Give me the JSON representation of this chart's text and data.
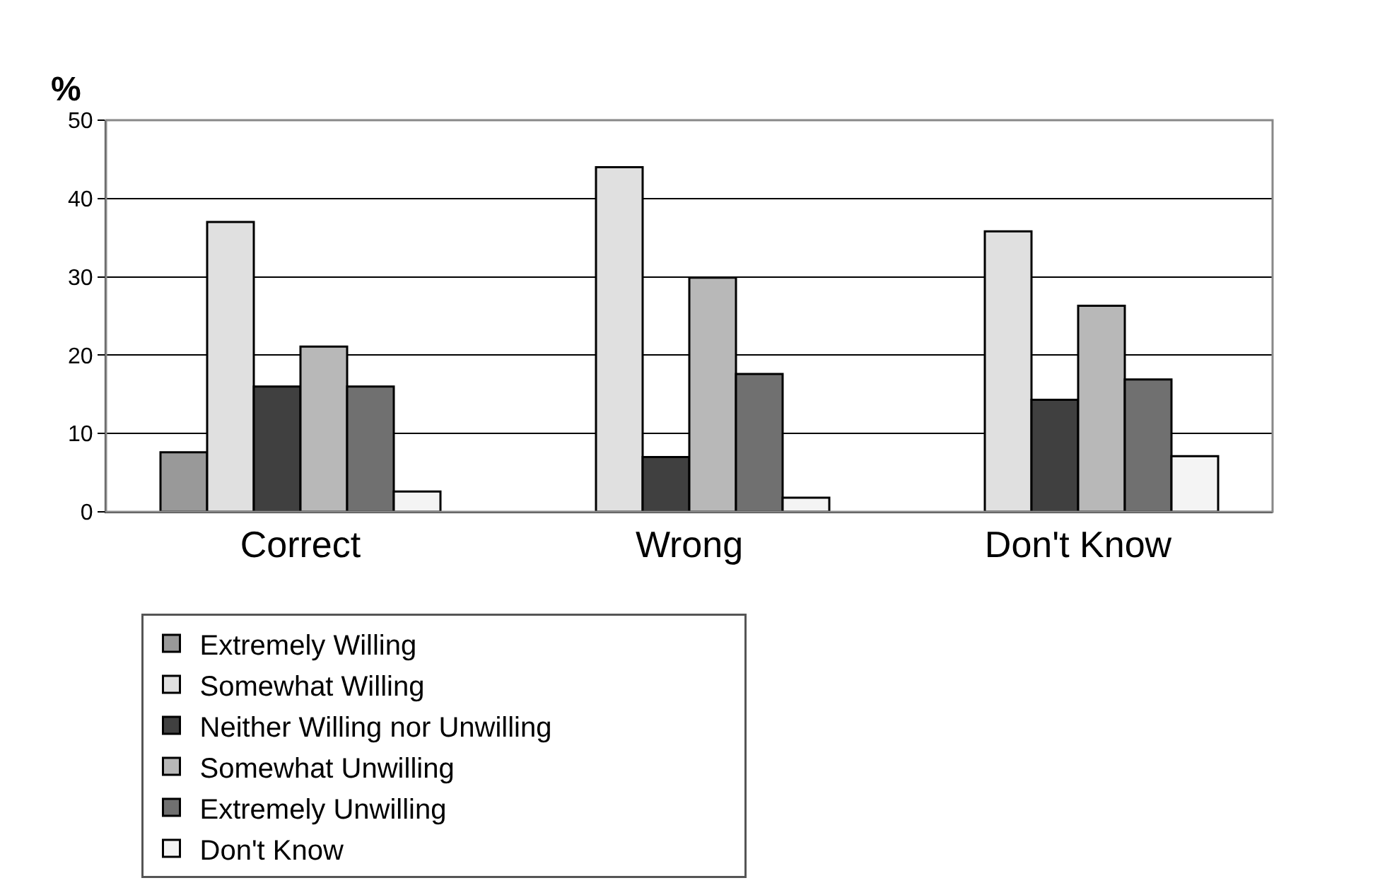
{
  "chart_data": {
    "type": "bar",
    "ylabel": "%",
    "categories": [
      "Correct",
      "Wrong",
      "Don't Know"
    ],
    "series": [
      {
        "name": "Extremely Willing",
        "color": "#999999",
        "values": [
          7.6,
          null,
          null
        ]
      },
      {
        "name": "Somewhat Willing",
        "color": "#e0e0e0",
        "values": [
          37,
          44,
          35.8
        ]
      },
      {
        "name": "Neither Willing nor Unwilling",
        "color": "#404040",
        "values": [
          16,
          7,
          14.3
        ]
      },
      {
        "name": "Somewhat Unwilling",
        "color": "#b8b8b8",
        "values": [
          21.1,
          29.9,
          26.3
        ]
      },
      {
        "name": "Extremely Unwilling",
        "color": "#707070",
        "values": [
          16,
          17.6,
          16.9
        ]
      },
      {
        "name": "Don't Know",
        "color": "#f4f4f4",
        "values": [
          2.6,
          1.8,
          7.1
        ]
      }
    ],
    "ylim": [
      0,
      50
    ],
    "yticks": [
      0,
      10,
      20,
      30,
      40,
      50
    ],
    "grid": "y",
    "legend": "bottom"
  }
}
